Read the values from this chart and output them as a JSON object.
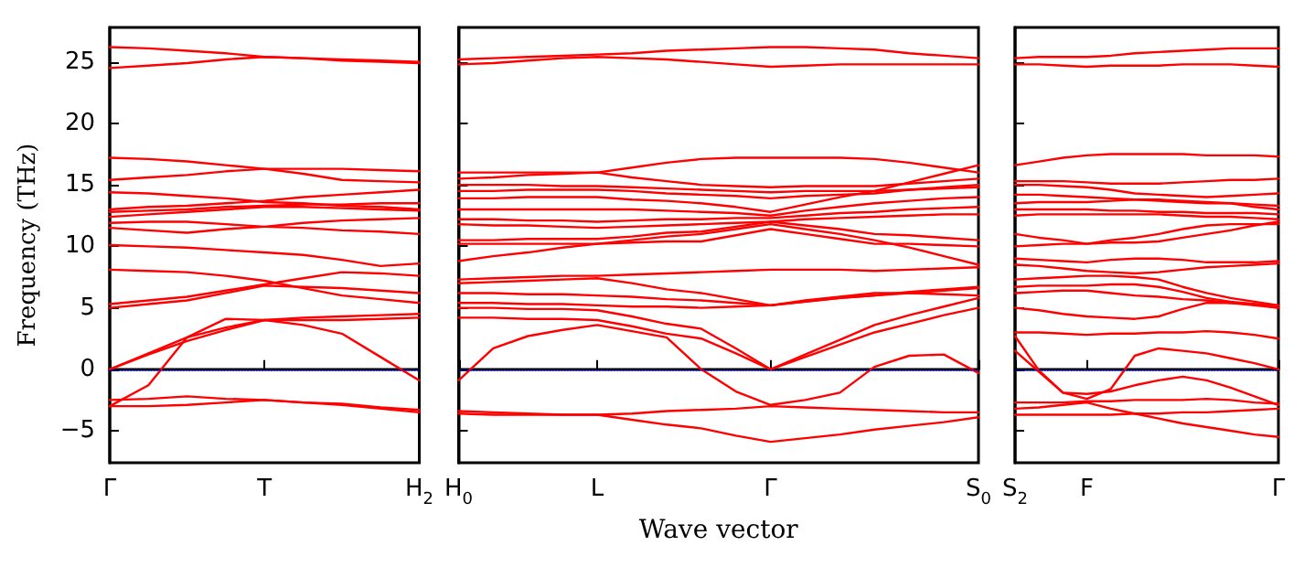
{
  "chart_data": [
    {
      "type": "line",
      "ylabel": "Frequency (THz)",
      "categories": [
        "Γ",
        null,
        null,
        null,
        "T",
        null,
        null,
        null,
        "H$_{2}$"
      ],
      "ylim": [
        -7.6,
        27.8
      ],
      "yticks": [
        -5,
        0,
        5,
        10,
        15,
        20,
        25
      ],
      "grid": false,
      "marker": "none",
      "line_style": "solid",
      "ref_lines": [
        {
          "axis": "y",
          "value": 0,
          "color": "#0000ff",
          "line_style": "dotted"
        }
      ],
      "series": [
        {
          "color": "#ff0000",
          "values": [
            26.2,
            26.1,
            25.9,
            25.7,
            25.4,
            25.3,
            25.1,
            25.0,
            24.9
          ]
        },
        {
          "color": "#ff0000",
          "values": [
            24.5,
            24.7,
            24.9,
            25.2,
            25.4,
            25.3,
            25.2,
            25.1,
            25.0
          ]
        },
        {
          "color": "#ff0000",
          "values": [
            17.2,
            17.1,
            16.9,
            16.6,
            16.3,
            15.9,
            15.4,
            15.3,
            15.2
          ]
        },
        {
          "color": "#ff0000",
          "values": [
            15.4,
            15.6,
            15.8,
            16.1,
            16.3,
            16.3,
            16.3,
            16.2,
            16.1
          ]
        },
        {
          "color": "#ff0000",
          "values": [
            14.4,
            14.3,
            14.1,
            13.9,
            13.6,
            13.5,
            13.3,
            13.2,
            13.0
          ]
        },
        {
          "color": "#ff0000",
          "values": [
            13.0,
            13.2,
            13.3,
            13.5,
            13.7,
            14.0,
            14.2,
            14.4,
            14.6
          ]
        },
        {
          "color": "#ff0000",
          "values": [
            12.8,
            12.9,
            13.0,
            13.2,
            13.3,
            13.4,
            13.4,
            13.5,
            13.5
          ]
        },
        {
          "color": "#ff0000",
          "values": [
            12.4,
            12.6,
            12.8,
            13.0,
            13.2,
            13.2,
            13.1,
            13.0,
            12.9
          ]
        },
        {
          "color": "#ff0000",
          "values": [
            11.9,
            12.0,
            12.0,
            11.8,
            11.6,
            11.5,
            11.3,
            11.2,
            11.0
          ]
        },
        {
          "color": "#ff0000",
          "values": [
            11.5,
            11.3,
            11.1,
            11.4,
            11.6,
            11.9,
            12.1,
            12.2,
            12.3
          ]
        },
        {
          "color": "#ff0000",
          "values": [
            10.1,
            10.0,
            9.9,
            9.7,
            9.5,
            9.3,
            8.9,
            8.4,
            8.6
          ]
        },
        {
          "color": "#ff0000",
          "values": [
            8.1,
            8.0,
            7.9,
            7.6,
            7.2,
            6.6,
            6.0,
            5.7,
            5.4
          ]
        },
        {
          "color": "#ff0000",
          "values": [
            5.3,
            5.6,
            5.9,
            6.4,
            6.9,
            7.4,
            7.9,
            7.8,
            7.6
          ]
        },
        {
          "color": "#ff0000",
          "values": [
            5.0,
            5.3,
            5.6,
            6.2,
            6.8,
            6.7,
            6.6,
            6.4,
            6.2
          ]
        },
        {
          "color": "#ff0000",
          "values": [
            0,
            1.3,
            2.6,
            4.1,
            4.0,
            4.2,
            4.3,
            4.4,
            4.5
          ]
        },
        {
          "color": "#ff0000",
          "values": [
            0,
            1.2,
            2.3,
            3.2,
            4.0,
            4.0,
            4.0,
            4.1,
            4.2
          ]
        },
        {
          "color": "#ff0000",
          "values": [
            -3.0,
            -1.3,
            2.6,
            3.4,
            4.0,
            3.6,
            2.9,
            1.0,
            -0.9
          ]
        },
        {
          "color": "#ff0000",
          "values": [
            -2.5,
            -2.4,
            -2.2,
            -2.4,
            -2.5,
            -2.7,
            -2.8,
            -3.1,
            -3.3
          ]
        },
        {
          "color": "#ff0000",
          "values": [
            -3.0,
            -3.0,
            -2.9,
            -2.7,
            -2.5,
            -2.7,
            -2.9,
            -3.2,
            -3.5
          ]
        }
      ]
    },
    {
      "type": "line",
      "xlabel": "Wave vector",
      "tick_labels": "x",
      "categories": [
        "H$_{0}$",
        null,
        null,
        null,
        "L",
        null,
        null,
        null,
        null,
        "Γ",
        null,
        null,
        null,
        null,
        null,
        "S$_{0}$"
      ],
      "ylim": [
        -7.6,
        27.8
      ],
      "yticks": [
        -5,
        0,
        5,
        10,
        15,
        20,
        25
      ],
      "grid": false,
      "marker": "none",
      "line_style": "solid",
      "ref_lines": [
        {
          "axis": "y",
          "value": 0,
          "color": "#0000ff",
          "line_style": "dotted"
        }
      ],
      "series": [
        {
          "color": "#ff0000",
          "values": [
            25.2,
            25.3,
            25.4,
            25.5,
            25.6,
            25.7,
            25.9,
            26.0,
            26.1,
            26.2,
            26.2,
            26.1,
            26.0,
            25.7,
            25.5,
            25.3
          ]
        },
        {
          "color": "#ff0000",
          "values": [
            24.8,
            24.9,
            25.1,
            25.3,
            25.4,
            25.3,
            25.2,
            25.0,
            24.8,
            24.6,
            24.7,
            24.8,
            24.8,
            24.8,
            24.8,
            24.8
          ]
        },
        {
          "color": "#ff0000",
          "values": [
            16.0,
            16.0,
            16.0,
            16.0,
            16.0,
            16.4,
            16.8,
            17.1,
            17.2,
            17.2,
            17.2,
            17.2,
            17.1,
            16.8,
            16.4,
            16.0
          ]
        },
        {
          "color": "#ff0000",
          "values": [
            15.5,
            15.6,
            15.8,
            15.9,
            16.0,
            15.6,
            15.3,
            15.0,
            14.9,
            14.8,
            14.9,
            14.9,
            14.9,
            15.1,
            15.3,
            15.5
          ]
        },
        {
          "color": "#ff0000",
          "values": [
            15.0,
            15.0,
            15.0,
            14.9,
            14.9,
            14.8,
            14.7,
            14.6,
            14.5,
            14.4,
            14.5,
            14.5,
            14.5,
            14.6,
            14.7,
            14.8
          ]
        },
        {
          "color": "#ff0000",
          "values": [
            14.5,
            14.5,
            14.6,
            14.6,
            14.6,
            14.5,
            14.3,
            14.2,
            14.1,
            13.9,
            14.1,
            14.2,
            14.3,
            14.6,
            14.8,
            15.0
          ]
        },
        {
          "color": "#ff0000",
          "values": [
            13.9,
            13.9,
            14.0,
            14.0,
            14.0,
            13.8,
            13.7,
            13.5,
            13.2,
            12.8,
            13.4,
            14.0,
            14.5,
            15.2,
            15.9,
            16.6
          ]
        },
        {
          "color": "#ff0000",
          "values": [
            13.0,
            13.0,
            13.0,
            13.0,
            13.0,
            13.0,
            12.9,
            12.8,
            12.7,
            12.5,
            12.9,
            13.2,
            13.5,
            13.7,
            13.9,
            14.0
          ]
        },
        {
          "color": "#ff0000",
          "values": [
            12.2,
            12.2,
            12.1,
            12.1,
            12.0,
            12.1,
            12.2,
            12.2,
            12.3,
            12.3,
            12.5,
            12.7,
            12.8,
            13.0,
            13.1,
            13.2
          ]
        },
        {
          "color": "#ff0000",
          "values": [
            11.8,
            11.7,
            11.7,
            11.6,
            11.5,
            11.6,
            11.7,
            11.8,
            11.9,
            12.0,
            12.2,
            12.3,
            12.4,
            12.5,
            12.6,
            12.6
          ]
        },
        {
          "color": "#ff0000",
          "values": [
            10.5,
            10.5,
            10.6,
            10.6,
            10.6,
            10.8,
            11.1,
            11.2,
            11.6,
            12.0,
            11.7,
            11.4,
            11.0,
            10.9,
            10.7,
            10.5
          ]
        },
        {
          "color": "#ff0000",
          "values": [
            10.2,
            10.2,
            10.2,
            10.2,
            10.2,
            10.3,
            10.4,
            10.4,
            10.9,
            11.4,
            11.0,
            10.6,
            10.2,
            10.2,
            10.1,
            10.0
          ]
        },
        {
          "color": "#ff0000",
          "values": [
            8.8,
            9.2,
            9.5,
            9.9,
            10.2,
            10.5,
            10.8,
            11.0,
            11.4,
            11.8,
            11.4,
            11.0,
            10.5,
            9.9,
            9.2,
            8.5
          ]
        },
        {
          "color": "#ff0000",
          "values": [
            7.3,
            7.4,
            7.5,
            7.6,
            7.6,
            7.7,
            7.8,
            7.9,
            8.0,
            8.1,
            8.1,
            8.1,
            8.0,
            8.1,
            8.2,
            8.3
          ]
        },
        {
          "color": "#ff0000",
          "values": [
            7.0,
            7.1,
            7.2,
            7.3,
            7.4,
            7.0,
            6.5,
            6.2,
            5.7,
            5.2,
            5.5,
            5.8,
            6.0,
            6.2,
            6.4,
            6.6
          ]
        },
        {
          "color": "#ff0000",
          "values": [
            6.2,
            6.2,
            6.1,
            6.1,
            6.0,
            5.9,
            5.7,
            5.6,
            5.4,
            5.2,
            5.5,
            5.8,
            6.0,
            6.3,
            6.5,
            6.7
          ]
        },
        {
          "color": "#ff0000",
          "values": [
            5.4,
            5.4,
            5.3,
            5.3,
            5.2,
            5.1,
            5.1,
            5.0,
            5.1,
            5.2,
            5.6,
            5.9,
            6.2,
            6.2,
            6.1,
            6.0
          ]
        },
        {
          "color": "#ff0000",
          "values": [
            5.0,
            5.0,
            4.9,
            4.9,
            4.8,
            4.3,
            3.7,
            3.3,
            1.7,
            0,
            1.2,
            2.4,
            3.6,
            4.4,
            5.1,
            5.8
          ]
        },
        {
          "color": "#ff0000",
          "values": [
            4.2,
            4.2,
            4.1,
            4.1,
            4.0,
            3.5,
            2.9,
            2.5,
            1.3,
            0,
            1.0,
            2.0,
            3.0,
            3.7,
            4.4,
            5.0
          ]
        },
        {
          "color": "#ff0000",
          "values": [
            -0.9,
            1.7,
            2.7,
            3.2,
            3.6,
            3.1,
            2.6,
            0,
            -1.8,
            -2.9,
            -2.5,
            -1.9,
            0.2,
            1.1,
            1.2,
            -0.3
          ]
        },
        {
          "color": "#ff0000",
          "values": [
            -3.4,
            -3.5,
            -3.6,
            -3.7,
            -3.7,
            -4.1,
            -4.5,
            -4.8,
            -5.4,
            -5.9,
            -5.6,
            -5.3,
            -4.9,
            -4.6,
            -4.3,
            -3.9
          ]
        },
        {
          "color": "#ff0000",
          "values": [
            -3.6,
            -3.7,
            -3.7,
            -3.7,
            -3.7,
            -3.6,
            -3.4,
            -3.3,
            -3.2,
            -3.0,
            -3.1,
            -3.2,
            -3.3,
            -3.4,
            -3.5,
            -3.5
          ]
        }
      ]
    },
    {
      "type": "line",
      "tick_labels": "x",
      "categories": [
        "S$_{2}$",
        null,
        null,
        "F",
        null,
        null,
        null,
        null,
        null,
        null,
        null,
        "Γ"
      ],
      "ylim": [
        -7.6,
        27.8
      ],
      "yticks": [
        -5,
        0,
        5,
        10,
        15,
        20,
        25
      ],
      "grid": false,
      "marker": "none",
      "line_style": "solid",
      "ref_lines": [
        {
          "axis": "y",
          "value": 0,
          "color": "#0000ff",
          "line_style": "dotted"
        }
      ],
      "series": [
        {
          "color": "#ff0000",
          "values": [
            25.3,
            25.4,
            25.4,
            25.4,
            25.5,
            25.7,
            25.8,
            25.9,
            26.0,
            26.1,
            26.1,
            26.1
          ]
        },
        {
          "color": "#ff0000",
          "values": [
            24.8,
            24.8,
            24.7,
            24.6,
            24.7,
            24.7,
            24.7,
            24.8,
            24.8,
            24.8,
            24.7,
            24.6
          ]
        },
        {
          "color": "#ff0000",
          "values": [
            16.6,
            16.9,
            17.2,
            17.4,
            17.5,
            17.5,
            17.5,
            17.5,
            17.4,
            17.4,
            17.4,
            17.3
          ]
        },
        {
          "color": "#ff0000",
          "values": [
            15.3,
            15.3,
            15.3,
            15.2,
            15.1,
            15.1,
            15.1,
            15.2,
            15.3,
            15.4,
            15.4,
            15.5
          ]
        },
        {
          "color": "#ff0000",
          "values": [
            15.0,
            15.0,
            14.9,
            14.8,
            14.6,
            14.3,
            14.2,
            14.1,
            14.0,
            14.1,
            14.2,
            14.3
          ]
        },
        {
          "color": "#ff0000",
          "values": [
            14.2,
            14.2,
            14.1,
            14.0,
            13.9,
            13.8,
            13.7,
            13.6,
            13.5,
            13.5,
            13.4,
            13.3
          ]
        },
        {
          "color": "#ff0000",
          "values": [
            13.5,
            13.6,
            13.6,
            13.6,
            13.7,
            13.8,
            13.8,
            13.7,
            13.6,
            13.5,
            13.2,
            13.0
          ]
        },
        {
          "color": "#ff0000",
          "values": [
            13.0,
            13.0,
            13.0,
            13.0,
            12.9,
            12.9,
            12.8,
            12.8,
            12.7,
            12.7,
            12.7,
            12.6
          ]
        },
        {
          "color": "#ff0000",
          "values": [
            12.5,
            12.6,
            12.6,
            12.6,
            12.6,
            12.6,
            12.6,
            12.5,
            12.4,
            12.4,
            12.3,
            12.2
          ]
        },
        {
          "color": "#ff0000",
          "values": [
            11.0,
            10.7,
            10.5,
            10.2,
            10.3,
            10.3,
            10.4,
            10.7,
            11.0,
            11.3,
            11.7,
            12.0
          ]
        },
        {
          "color": "#ff0000",
          "values": [
            10.0,
            10.1,
            10.2,
            10.2,
            10.5,
            10.7,
            11.0,
            11.4,
            11.7,
            11.8,
            11.8,
            11.8
          ]
        },
        {
          "color": "#ff0000",
          "values": [
            9.0,
            8.9,
            8.8,
            8.7,
            8.9,
            9.0,
            9.0,
            8.9,
            8.7,
            8.7,
            8.7,
            8.8
          ]
        },
        {
          "color": "#ff0000",
          "values": [
            8.5,
            8.4,
            8.2,
            8.0,
            7.9,
            7.8,
            7.9,
            8.1,
            8.3,
            8.4,
            8.5,
            8.6
          ]
        },
        {
          "color": "#ff0000",
          "values": [
            7.3,
            7.4,
            7.5,
            7.6,
            7.6,
            7.5,
            7.3,
            6.7,
            6.2,
            5.8,
            5.5,
            5.2
          ]
        },
        {
          "color": "#ff0000",
          "values": [
            6.7,
            6.8,
            6.8,
            6.8,
            6.9,
            6.9,
            6.7,
            6.3,
            5.8,
            5.5,
            5.3,
            5.0
          ]
        },
        {
          "color": "#ff0000",
          "values": [
            6.2,
            6.3,
            6.4,
            6.4,
            6.2,
            6.0,
            5.9,
            5.7,
            5.6,
            5.4,
            5.2,
            5.0
          ]
        },
        {
          "color": "#ff0000",
          "values": [
            5.0,
            4.8,
            4.5,
            4.3,
            4.2,
            4.1,
            4.3,
            4.9,
            5.4,
            5.4,
            5.3,
            5.2
          ]
        },
        {
          "color": "#ff0000",
          "values": [
            3.0,
            3.0,
            2.9,
            2.8,
            2.9,
            2.9,
            3.0,
            3.0,
            3.1,
            3.0,
            2.8,
            2.5
          ]
        },
        {
          "color": "#ff0000",
          "values": [
            2.7,
            -0.1,
            -1.9,
            -2.4,
            -1.6,
            1.1,
            1.7,
            1.5,
            1.3,
            0.9,
            0.5,
            0
          ]
        },
        {
          "color": "#ff0000",
          "values": [
            1.5,
            -0.2,
            -1.9,
            -2.0,
            -1.8,
            -1.3,
            -0.9,
            -0.6,
            -0.9,
            -1.5,
            -2.2,
            -2.9
          ]
        },
        {
          "color": "#ff0000",
          "values": [
            -2.7,
            -2.7,
            -2.7,
            -2.6,
            -2.6,
            -2.5,
            -2.5,
            -2.5,
            -2.4,
            -2.5,
            -2.7,
            -2.8
          ]
        },
        {
          "color": "#ff0000",
          "values": [
            -3.7,
            -3.7,
            -3.7,
            -3.7,
            -3.7,
            -3.6,
            -3.6,
            -3.5,
            -3.5,
            -3.4,
            -3.3,
            -3.2
          ]
        },
        {
          "color": "#ff0000",
          "values": [
            -3.2,
            -3.1,
            -2.9,
            -2.7,
            -3.2,
            -3.6,
            -4.0,
            -4.4,
            -4.7,
            -5.0,
            -5.3,
            -5.5
          ]
        }
      ]
    }
  ]
}
